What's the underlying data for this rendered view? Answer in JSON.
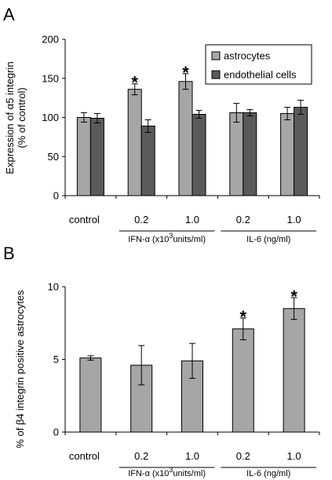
{
  "colors": {
    "astrocytes": "#a6a6a6",
    "endothelial": "#5a5a5a",
    "bar_stroke": "#000000",
    "axis": "#000000",
    "plot_bg": "#ffffff"
  },
  "chart_data": [
    {
      "panel": "A",
      "type": "bar",
      "ylabel_line1": "Expression of α5 integrin",
      "ylabel_line2": "(% of control)",
      "ylim": [
        0,
        200
      ],
      "yticks": [
        0,
        50,
        100,
        150,
        200
      ],
      "ytick_labels": [
        "0",
        "50",
        "100",
        "150",
        "200"
      ],
      "grid": false,
      "legend_position": "top-right",
      "categories": [
        "control",
        "0.2",
        "1.0",
        "0.2",
        "1.0"
      ],
      "groups": [
        {
          "label": "IFN-α (x10",
          "sup": "3",
          "label_tail": "units/ml)",
          "span": [
            1,
            2
          ]
        },
        {
          "label": "IL-6 (ng/ml)",
          "sup": "",
          "label_tail": "",
          "span": [
            3,
            4
          ]
        }
      ],
      "series": [
        {
          "name": "astrocytes",
          "color_key": "astrocytes",
          "values": [
            100,
            136,
            146,
            106,
            105
          ],
          "errors": [
            6,
            7,
            10,
            12,
            8
          ]
        },
        {
          "name": "endothelial cells",
          "color_key": "endothelial",
          "values": [
            99,
            89,
            104,
            106,
            113
          ],
          "errors": [
            6,
            8,
            5,
            4,
            9
          ]
        }
      ],
      "significance": [
        {
          "series": 0,
          "category": 1,
          "mark": "*"
        },
        {
          "series": 0,
          "category": 2,
          "mark": "*"
        }
      ]
    },
    {
      "panel": "B",
      "type": "bar",
      "ylabel_line1": "% of β4 integrin positive astrocytes",
      "ylim": [
        0,
        10
      ],
      "yticks": [
        0,
        5,
        10
      ],
      "ytick_labels": [
        "0",
        "5",
        "10"
      ],
      "grid": false,
      "categories": [
        "control",
        "0.2",
        "1.0",
        "0.2",
        "1.0"
      ],
      "groups": [
        {
          "label": "IFN-α (x10",
          "sup": "3",
          "label_tail": "units/ml)",
          "span": [
            1,
            2
          ]
        },
        {
          "label": "IL-6 (ng/ml)",
          "sup": "",
          "label_tail": "",
          "span": [
            3,
            4
          ]
        }
      ],
      "series": [
        {
          "color_key": "astrocytes",
          "values": [
            5.1,
            4.6,
            4.9,
            7.1,
            8.5
          ],
          "errors": [
            0.15,
            1.35,
            1.2,
            0.75,
            0.75
          ]
        }
      ],
      "significance": [
        {
          "series": 0,
          "category": 3,
          "mark": "*"
        },
        {
          "series": 0,
          "category": 4,
          "mark": "*"
        }
      ]
    }
  ]
}
